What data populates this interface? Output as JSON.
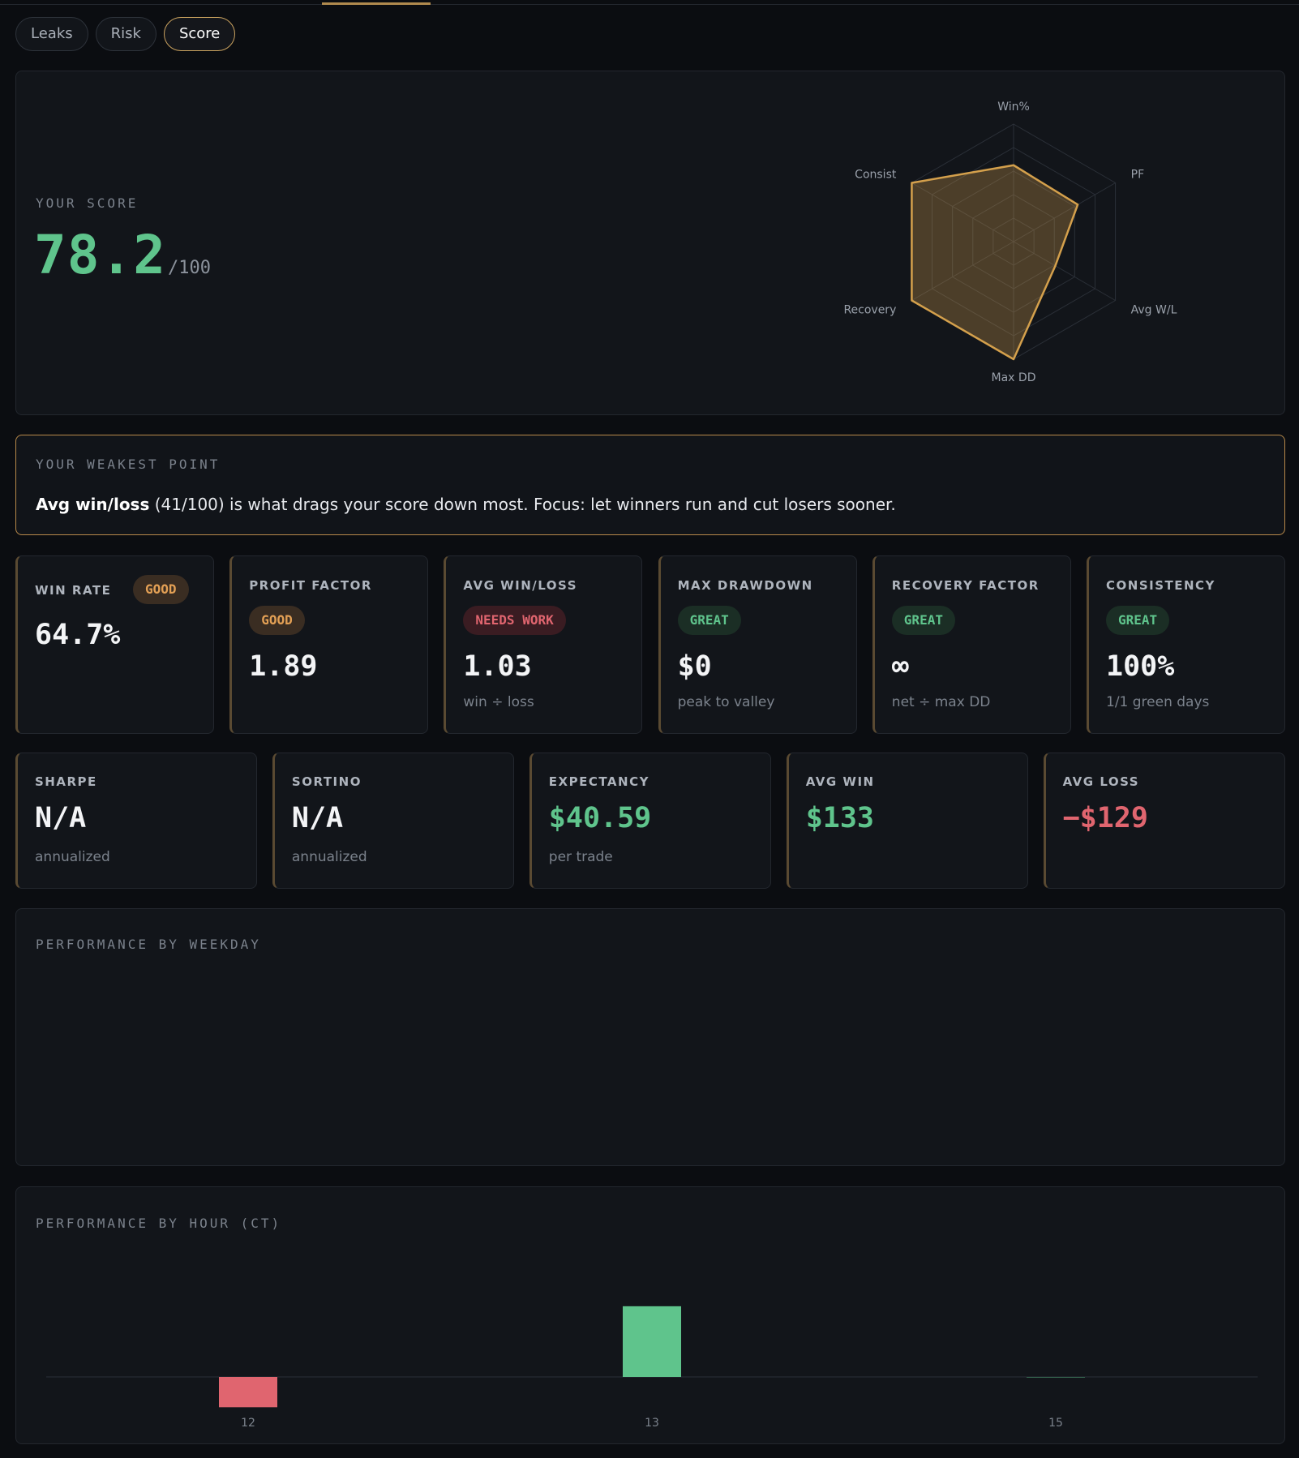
{
  "tabs": [
    {
      "label": "Leaks",
      "active": false
    },
    {
      "label": "Risk",
      "active": false
    },
    {
      "label": "Score",
      "active": true
    }
  ],
  "score": {
    "label": "YOUR SCORE",
    "value": "78.2",
    "max": "/100"
  },
  "radar": {
    "axes": [
      "Win%",
      "PF",
      "Avg W/L",
      "Max DD",
      "Recovery",
      "Consist"
    ],
    "values": [
      65,
      63,
      41,
      100,
      100,
      100
    ],
    "color": "#d4a04c"
  },
  "weakest": {
    "label": "YOUR WEAKEST POINT",
    "metric": "Avg win/loss",
    "text": " (41/100) is what drags your score down most. Focus: let winners run and cut losers sooner."
  },
  "metrics_row1": [
    {
      "label": "WIN RATE",
      "badge": "GOOD",
      "badge_type": "good",
      "value": "64.7%",
      "sub": ""
    },
    {
      "label": "PROFIT FACTOR",
      "badge": "GOOD",
      "badge_type": "good",
      "value": "1.89",
      "sub": ""
    },
    {
      "label": "AVG WIN/LOSS",
      "badge": "NEEDS WORK",
      "badge_type": "needs",
      "value": "1.03",
      "sub": "win ÷ loss"
    },
    {
      "label": "MAX DRAWDOWN",
      "badge": "GREAT",
      "badge_type": "great",
      "value": "$0",
      "sub": "peak to valley"
    },
    {
      "label": "RECOVERY FACTOR",
      "badge": "GREAT",
      "badge_type": "great",
      "value": "∞",
      "sub": "net ÷ max DD"
    },
    {
      "label": "CONSISTENCY",
      "badge": "GREAT",
      "badge_type": "great",
      "value": "100%",
      "sub": "1/1 green days"
    }
  ],
  "metrics_row2": [
    {
      "label": "SHARPE",
      "value": "N/A",
      "sub": "annualized",
      "tone": "neutral"
    },
    {
      "label": "SORTINO",
      "value": "N/A",
      "sub": "annualized",
      "tone": "neutral"
    },
    {
      "label": "EXPECTANCY",
      "value": "$40.59",
      "sub": "per trade",
      "tone": "positive"
    },
    {
      "label": "AVG WIN",
      "value": "$133",
      "sub": "",
      "tone": "positive"
    },
    {
      "label": "AVG LOSS",
      "value": "−$129",
      "sub": "",
      "tone": "negative"
    }
  ],
  "weekday": {
    "label": "PERFORMANCE BY WEEKDAY"
  },
  "hour": {
    "label": "PERFORMANCE BY HOUR (CT)"
  },
  "chart_data": {
    "type": "bar",
    "categories": [
      "12",
      "13",
      "15"
    ],
    "values": [
      -45,
      105,
      0
    ],
    "colors": {
      "positive": "#5fc48c",
      "negative": "#e0656f"
    }
  }
}
